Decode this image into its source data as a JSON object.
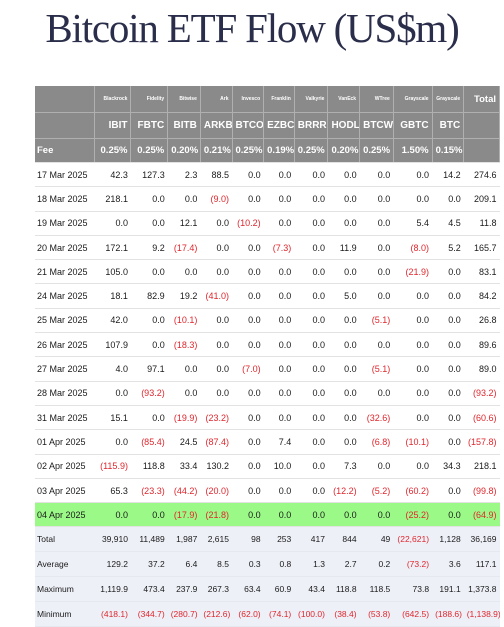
{
  "title": "Bitcoin ETF Flow (US$m)",
  "issuers": [
    "Blackrock",
    "Fidelity",
    "Bitwise",
    "Ark",
    "Invesco",
    "Franklin",
    "Valkyrie",
    "VanEck",
    "WTree",
    "Grayscale",
    "Grayscale"
  ],
  "total_label": "Total",
  "tickers": [
    "IBIT",
    "FBTC",
    "BITB",
    "ARKB",
    "BTCO",
    "EZBC",
    "BRRR",
    "HODL",
    "BTCW",
    "GBTC",
    "BTC"
  ],
  "fee_label": "Fee",
  "fees": [
    "0.25%",
    "0.25%",
    "0.20%",
    "0.21%",
    "0.25%",
    "0.19%",
    "0.25%",
    "0.20%",
    "0.25%",
    "1.50%",
    "0.15%"
  ],
  "rows": [
    {
      "date": "17 Mar 2025",
      "values": [
        "42.3",
        "127.3",
        "2.3",
        "88.5",
        "0.0",
        "0.0",
        "0.0",
        "0.0",
        "0.0",
        "0.0",
        "14.2"
      ],
      "total": "274.6"
    },
    {
      "date": "18 Mar 2025",
      "values": [
        "218.1",
        "0.0",
        "0.0",
        "(9.0)",
        "0.0",
        "0.0",
        "0.0",
        "0.0",
        "0.0",
        "0.0",
        "0.0"
      ],
      "total": "209.1"
    },
    {
      "date": "19 Mar 2025",
      "values": [
        "0.0",
        "0.0",
        "12.1",
        "0.0",
        "(10.2)",
        "0.0",
        "0.0",
        "0.0",
        "0.0",
        "5.4",
        "4.5"
      ],
      "total": "11.8"
    },
    {
      "date": "20 Mar 2025",
      "values": [
        "172.1",
        "9.2",
        "(17.4)",
        "0.0",
        "0.0",
        "(7.3)",
        "0.0",
        "11.9",
        "0.0",
        "(8.0)",
        "5.2"
      ],
      "total": "165.7"
    },
    {
      "date": "21 Mar 2025",
      "values": [
        "105.0",
        "0.0",
        "0.0",
        "0.0",
        "0.0",
        "0.0",
        "0.0",
        "0.0",
        "0.0",
        "(21.9)",
        "0.0"
      ],
      "total": "83.1"
    },
    {
      "date": "24 Mar 2025",
      "values": [
        "18.1",
        "82.9",
        "19.2",
        "(41.0)",
        "0.0",
        "0.0",
        "0.0",
        "5.0",
        "0.0",
        "0.0",
        "0.0"
      ],
      "total": "84.2"
    },
    {
      "date": "25 Mar 2025",
      "values": [
        "42.0",
        "0.0",
        "(10.1)",
        "0.0",
        "0.0",
        "0.0",
        "0.0",
        "0.0",
        "(5.1)",
        "0.0",
        "0.0"
      ],
      "total": "26.8"
    },
    {
      "date": "26 Mar 2025",
      "values": [
        "107.9",
        "0.0",
        "(18.3)",
        "0.0",
        "0.0",
        "0.0",
        "0.0",
        "0.0",
        "0.0",
        "0.0",
        "0.0"
      ],
      "total": "89.6"
    },
    {
      "date": "27 Mar 2025",
      "values": [
        "4.0",
        "97.1",
        "0.0",
        "0.0",
        "(7.0)",
        "0.0",
        "0.0",
        "0.0",
        "(5.1)",
        "0.0",
        "0.0"
      ],
      "total": "89.0"
    },
    {
      "date": "28 Mar 2025",
      "values": [
        "0.0",
        "(93.2)",
        "0.0",
        "0.0",
        "0.0",
        "0.0",
        "0.0",
        "0.0",
        "0.0",
        "0.0",
        "0.0"
      ],
      "total": "(93.2)"
    },
    {
      "date": "31 Mar 2025",
      "values": [
        "15.1",
        "0.0",
        "(19.9)",
        "(23.2)",
        "0.0",
        "0.0",
        "0.0",
        "0.0",
        "(32.6)",
        "0.0",
        "0.0"
      ],
      "total": "(60.6)"
    },
    {
      "date": "01 Apr 2025",
      "values": [
        "0.0",
        "(85.4)",
        "24.5",
        "(87.4)",
        "0.0",
        "7.4",
        "0.0",
        "0.0",
        "(6.8)",
        "(10.1)",
        "0.0"
      ],
      "total": "(157.8)"
    },
    {
      "date": "02 Apr 2025",
      "values": [
        "(115.9)",
        "118.8",
        "33.4",
        "130.2",
        "0.0",
        "10.0",
        "0.0",
        "7.3",
        "0.0",
        "0.0",
        "34.3"
      ],
      "total": "218.1"
    },
    {
      "date": "03 Apr 2025",
      "values": [
        "65.3",
        "(23.3)",
        "(44.2)",
        "(20.0)",
        "0.0",
        "0.0",
        "0.0",
        "(12.2)",
        "(5.2)",
        "(60.2)",
        "0.0"
      ],
      "total": "(99.8)"
    },
    {
      "date": "04 Apr 2025",
      "values": [
        "0.0",
        "0.0",
        "(17.9)",
        "(21.8)",
        "0.0",
        "0.0",
        "0.0",
        "0.0",
        "0.0",
        "(25.2)",
        "0.0"
      ],
      "total": "(64.9)",
      "highlight": true
    }
  ],
  "stats": [
    {
      "label": "Total",
      "values": [
        "39,910",
        "11,489",
        "1,987",
        "2,615",
        "98",
        "253",
        "417",
        "844",
        "49",
        "(22,621)",
        "1,128"
      ],
      "total": "36,169"
    },
    {
      "label": "Average",
      "values": [
        "129.2",
        "37.2",
        "6.4",
        "8.5",
        "0.3",
        "0.8",
        "1.3",
        "2.7",
        "0.2",
        "(73.2)",
        "3.6"
      ],
      "total": "117.1"
    },
    {
      "label": "Maximum",
      "values": [
        "1,119.9",
        "473.4",
        "237.9",
        "267.3",
        "63.4",
        "60.9",
        "43.4",
        "118.8",
        "118.5",
        "73.8",
        "191.1"
      ],
      "total": "1,373.8"
    },
    {
      "label": "Minimum",
      "values": [
        "(418.1)",
        "(344.7)",
        "(280.7)",
        "(212.6)",
        "(62.0)",
        "(74.1)",
        "(100.0)",
        "(38.4)",
        "(53.8)",
        "(642.5)",
        "(188.6)"
      ],
      "total": "(1,138.9)"
    }
  ]
}
